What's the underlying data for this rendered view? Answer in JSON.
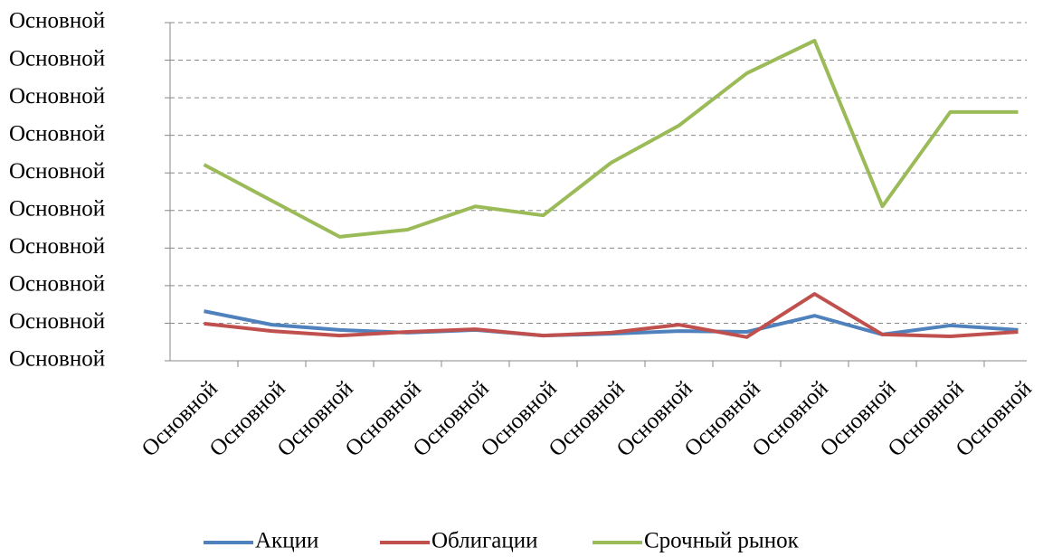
{
  "chart_data": {
    "type": "line",
    "categories": [
      "Основной",
      "Основной",
      "Основной",
      "Основной",
      "Основной",
      "Основной",
      "Основной",
      "Основной",
      "Основной",
      "Основной",
      "Основной",
      "Основной",
      "Основной"
    ],
    "series": [
      {
        "name": "Акции",
        "color": "#4f81bd",
        "values": [
          1.32,
          0.96,
          0.82,
          0.75,
          0.82,
          0.67,
          0.72,
          0.79,
          0.77,
          1.2,
          0.7,
          0.94,
          0.82
        ]
      },
      {
        "name": "Облигации",
        "color": "#c0504d",
        "values": [
          0.99,
          0.79,
          0.67,
          0.77,
          0.84,
          0.67,
          0.75,
          0.96,
          0.63,
          1.78,
          0.7,
          0.65,
          0.77
        ]
      },
      {
        "name": "Срочный рынок",
        "color": "#9bbb59",
        "values": [
          5.22,
          4.26,
          3.3,
          3.49,
          4.11,
          3.87,
          5.27,
          6.26,
          7.65,
          8.52,
          4.11,
          6.62,
          6.62
        ]
      }
    ],
    "ylim": [
      0,
      9
    ],
    "yticks": [
      {
        "value": 0,
        "label": "Основной"
      },
      {
        "value": 1,
        "label": "Основной"
      },
      {
        "value": 2,
        "label": "Основной"
      },
      {
        "value": 3,
        "label": "Основной"
      },
      {
        "value": 4,
        "label": "Основной"
      },
      {
        "value": 5,
        "label": "Основной"
      },
      {
        "value": 6,
        "label": "Основной"
      },
      {
        "value": 7,
        "label": "Основной"
      },
      {
        "value": 8,
        "label": "Основной"
      },
      {
        "value": 9,
        "label": "Основной"
      }
    ],
    "grid": true,
    "legend": "bottom"
  }
}
